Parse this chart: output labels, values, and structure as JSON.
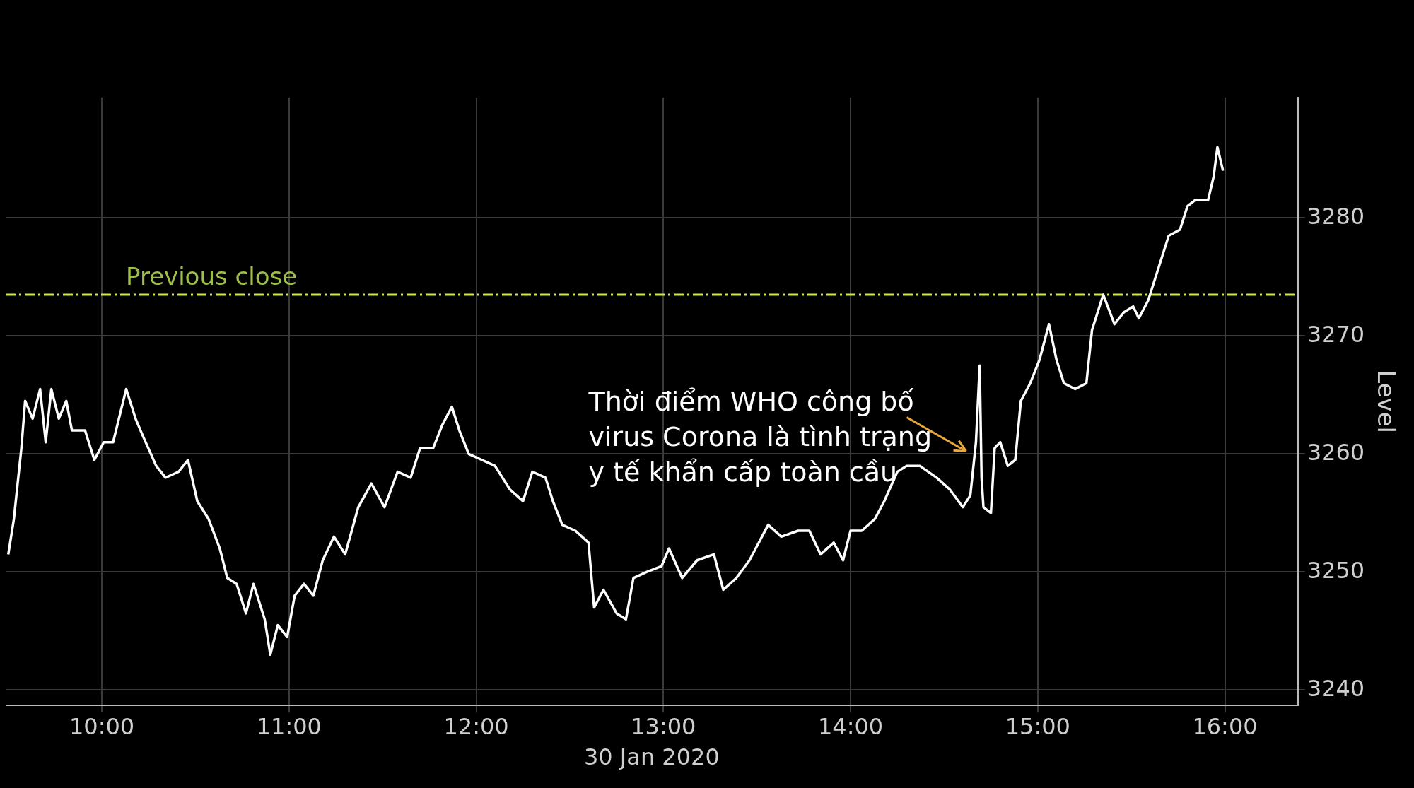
{
  "chart_data": {
    "type": "line",
    "xlabel": "30 Jan 2020",
    "ylabel": "Level",
    "x": [
      9.5,
      9.53,
      9.57,
      9.59,
      9.63,
      9.67,
      9.7,
      9.73,
      9.77,
      9.81,
      9.84,
      9.91,
      9.96,
      10.01,
      10.06,
      10.13,
      10.18,
      10.22,
      10.29,
      10.34,
      10.41,
      10.46,
      10.51,
      10.57,
      10.63,
      10.67,
      10.72,
      10.77,
      10.81,
      10.87,
      10.9,
      10.94,
      10.99,
      11.03,
      11.08,
      11.13,
      11.18,
      11.24,
      11.3,
      11.37,
      11.44,
      11.51,
      11.58,
      11.65,
      11.7,
      11.77,
      11.82,
      11.87,
      11.91,
      11.96,
      12.03,
      12.1,
      12.18,
      12.25,
      12.3,
      12.37,
      12.41,
      12.46,
      12.53,
      12.6,
      12.63,
      12.68,
      12.75,
      12.8,
      12.84,
      12.91,
      12.99,
      13.03,
      13.1,
      13.18,
      13.27,
      13.32,
      13.39,
      13.46,
      13.51,
      13.56,
      13.63,
      13.72,
      13.78,
      13.84,
      13.91,
      13.96,
      14.0,
      14.06,
      14.13,
      14.18,
      14.25,
      14.3,
      14.37,
      14.46,
      14.53,
      14.6,
      14.64,
      14.67,
      14.69,
      14.7,
      14.71,
      14.75,
      14.77,
      14.8,
      14.84,
      14.88,
      14.91,
      14.96,
      15.01,
      15.06,
      15.1,
      15.14,
      15.2,
      15.26,
      15.29,
      15.35,
      15.41,
      15.46,
      15.51,
      15.54,
      15.59,
      15.64,
      15.7,
      15.76,
      15.8,
      15.84,
      15.91,
      15.94,
      15.96,
      15.99
    ],
    "series": [
      {
        "color": "#ffffff",
        "values": [
          3251.5,
          3254.5,
          3260.5,
          3264.5,
          3263,
          3265.5,
          3261,
          3265.5,
          3263,
          3264.5,
          3262,
          3262,
          3259.5,
          3261,
          3261,
          3265.5,
          3263,
          3261.5,
          3259,
          3258,
          3258.5,
          3259.5,
          3256,
          3254.5,
          3252,
          3249.5,
          3249,
          3246.5,
          3249,
          3246,
          3243,
          3245.5,
          3244.5,
          3248,
          3249,
          3248,
          3251,
          3253,
          3251.5,
          3255.5,
          3257.5,
          3255.5,
          3258.5,
          3258,
          3260.5,
          3260.5,
          3262.5,
          3264,
          3262,
          3260,
          3259.5,
          3259,
          3257,
          3256,
          3258.5,
          3258,
          3256,
          3254,
          3253.5,
          3252.5,
          3247,
          3248.5,
          3246.5,
          3246,
          3249.5,
          3250,
          3250.5,
          3252,
          3249.5,
          3251,
          3251.5,
          3248.5,
          3249.5,
          3251,
          3252.5,
          3254,
          3253,
          3253.5,
          3253.5,
          3251.5,
          3252.5,
          3251,
          3253.5,
          3253.5,
          3254.5,
          3256,
          3258.5,
          3259,
          3259,
          3258,
          3257,
          3255.5,
          3256.5,
          3261,
          3267.5,
          3258,
          3255.5,
          3255,
          3260.5,
          3261,
          3259,
          3259.5,
          3264.5,
          3266,
          3268,
          3271,
          3268,
          3266,
          3265.5,
          3266,
          3270.5,
          3273.5,
          3271,
          3272,
          3272.5,
          3271.5,
          3273,
          3275.5,
          3278.5,
          3279,
          3281,
          3281.5,
          3281.5,
          3283.5,
          3286,
          3284
        ]
      }
    ],
    "xlim": [
      9.486,
      16.39
    ],
    "xticks": [
      {
        "value": 10,
        "label": "10:00"
      },
      {
        "value": 11,
        "label": "11:00"
      },
      {
        "value": 12,
        "label": "12:00"
      },
      {
        "value": 13,
        "label": "13:00"
      },
      {
        "value": 14,
        "label": "14:00"
      },
      {
        "value": 15,
        "label": "15:00"
      },
      {
        "value": 16,
        "label": "16:00"
      }
    ],
    "ylim": [
      3238.7,
      3290.2
    ],
    "yticks": [
      3240,
      3250,
      3260,
      3270,
      3280
    ],
    "grid": true,
    "ref_lines": [
      {
        "axis": "y",
        "value": 3273.5,
        "label": "Previous close",
        "color": "#d4e84a",
        "line_style": "dashed"
      }
    ],
    "annotations": [
      {
        "text": "Thời điểm WHO công bố\nvirus Corona là tình trạng\ny tế khẩn cấp toàn cầu",
        "x": 14.64,
        "y": 3260
      }
    ]
  }
}
